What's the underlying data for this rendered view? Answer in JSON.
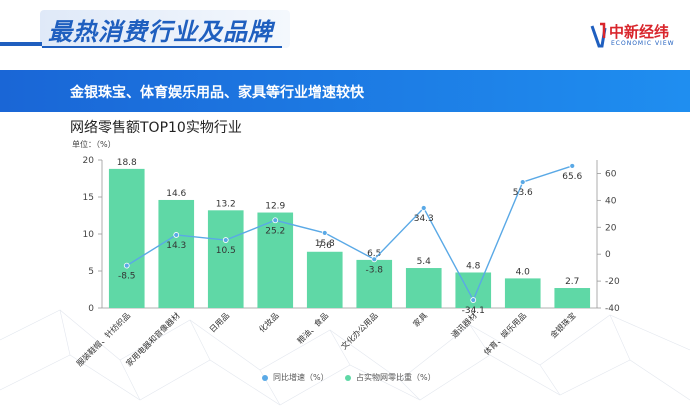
{
  "header": {
    "title": "最热消费行业及品牌",
    "logo_text": "中新经纬",
    "logo_subtext": "ECONOMIC VIEW",
    "accent_color": "#1f5fbf"
  },
  "banner": {
    "text": "金银珠宝、体育娱乐用品、家具等行业增速较快",
    "color": "#1a66d6"
  },
  "chart_title": "网络零售额TOP10实物行业",
  "unit_label": "单位：（%）",
  "chart_data": {
    "type": "bar",
    "categories": [
      "服装鞋帽、针纺织品",
      "家用电器和音像器材",
      "日用品",
      "化妆品",
      "粮油、食品",
      "文化办公用品",
      "家具",
      "通讯器材",
      "体育、娱乐用品",
      "金银珠宝"
    ],
    "series": [
      {
        "name": "同比增速（%）",
        "type": "line",
        "axis": "right",
        "color": "#5aa9e6",
        "values": [
          -8.5,
          14.3,
          10.5,
          25.2,
          15.8,
          -3.8,
          34.3,
          -34.1,
          53.6,
          65.6
        ]
      },
      {
        "name": "占实物网零比重（%）",
        "type": "bar",
        "axis": "left",
        "color": "#5fd8a6",
        "values": [
          18.8,
          14.6,
          13.2,
          12.9,
          7.6,
          6.5,
          5.4,
          4.8,
          4.0,
          2.7
        ]
      }
    ],
    "left_axis": {
      "ylim": [
        0,
        20
      ],
      "ticks": [
        "0",
        "5",
        "10",
        "15",
        "20"
      ]
    },
    "right_axis": {
      "ylim": [
        -40,
        70
      ],
      "ticks": [
        "-40",
        "-20",
        "0",
        "20",
        "40",
        "60"
      ]
    },
    "legend_position": "bottom-center",
    "grid": false
  }
}
